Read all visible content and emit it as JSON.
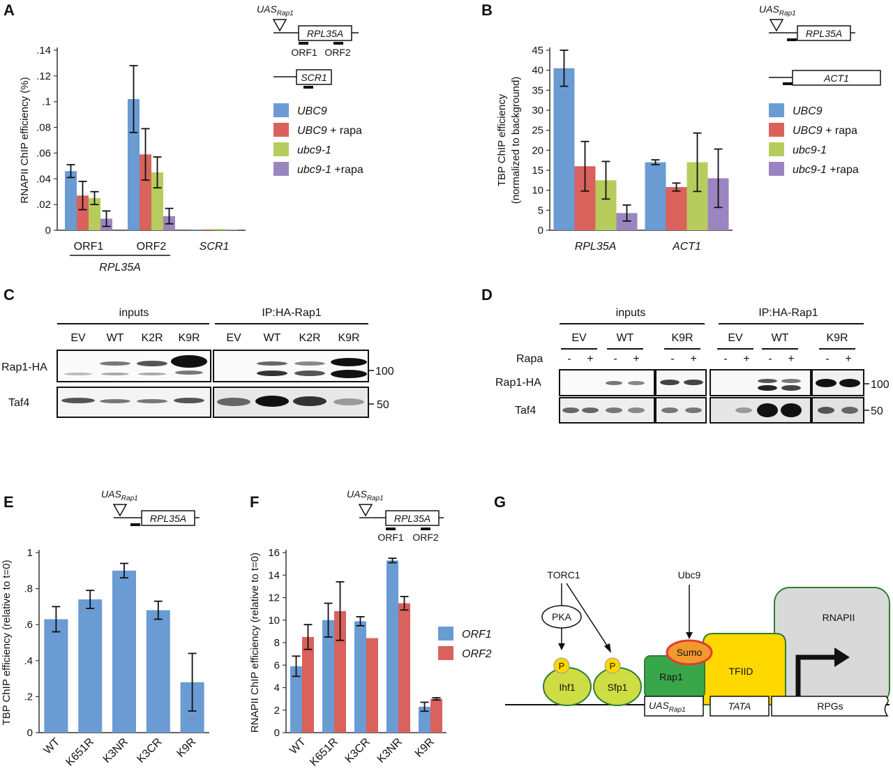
{
  "panel_labels": {
    "a": "A",
    "b": "B",
    "c": "C",
    "d": "D",
    "e": "E",
    "f": "F",
    "g": "G"
  },
  "colors": {
    "blue": "#6a9bd3",
    "red": "#d9625c",
    "green": "#b6cd5e",
    "purple": "#9b85c1",
    "f_blue": "#6a9bd3",
    "f_red": "#d9625c",
    "g_yellow": "#ffd800",
    "g_green": "#3aa64a",
    "g_gray": "#d9d9d9",
    "g_sumo": "#f29a2e",
    "g_pgreen": "#cfdd44"
  },
  "icon_names": [
    "triangle-uas-icon",
    "arrow-tss-icon"
  ],
  "schematics": {
    "uas": "UAS",
    "uas_sub": "Rap1",
    "rpl35a": "RPL35A",
    "scr1": "SCR1",
    "act1": "ACT1",
    "orf1": "ORF1",
    "orf2": "ORF2"
  },
  "legend_a": [
    {
      "label": "UBC9",
      "suffix": "",
      "color": "#6a9bd3"
    },
    {
      "label": "UBC9",
      "suffix": " + rapa",
      "color": "#d9625c"
    },
    {
      "label": "ubc9-1",
      "suffix": "",
      "color": "#b6cd5e"
    },
    {
      "label": "ubc9-1",
      "suffix": " +rapa",
      "color": "#9b85c1"
    }
  ],
  "legend_f": [
    {
      "label": "ORF1",
      "color": "#6a9bd3"
    },
    {
      "label": "ORF2",
      "color": "#d9625c"
    }
  ],
  "blot_c": {
    "group1": "inputs",
    "group2": "IP:HA-Rap1",
    "lanes": [
      "EV",
      "WT",
      "K2R",
      "K9R",
      "EV",
      "WT",
      "K2R",
      "K9R"
    ],
    "rows": [
      "Rap1-HA",
      "Taf4"
    ],
    "markers": [
      "100",
      "50"
    ]
  },
  "blot_d": {
    "group1": "inputs",
    "group2": "IP:HA-Rap1",
    "lanes": [
      "EV",
      "WT",
      "K9R",
      "EV",
      "WT",
      "K9R"
    ],
    "rapa_label": "Rapa",
    "minus": "-",
    "plus": "+",
    "rows": [
      "Rap1-HA",
      "Taf4"
    ],
    "markers": [
      "100",
      "50"
    ]
  },
  "diagram_g": {
    "torc1": "TORC1",
    "pka": "PKA",
    "p": "P",
    "ihf1": "Ihf1",
    "sfp1": "Sfp1",
    "ubc9": "Ubc9",
    "sumo": "Sumo",
    "rap1": "Rap1",
    "tfiid": "TFIID",
    "rnapii": "RNAPII",
    "uas": "UAS",
    "uas_sub": "Rap1",
    "tata": "TATA",
    "rpgs": "RPGs"
  },
  "chart_data": [
    {
      "id": "A",
      "type": "bar",
      "ylabel": "RNAPII ChIP efficiency (%)",
      "ylim": [
        0,
        0.14
      ],
      "yticks": [
        0,
        0.02,
        0.04,
        0.06,
        0.08,
        0.1,
        0.12,
        0.14
      ],
      "ytick_labels": [
        "0",
        ".02",
        ".04",
        ".06",
        ".08",
        ".1",
        ".12",
        ".14"
      ],
      "categories": [
        "ORF1",
        "ORF2",
        "SCR1"
      ],
      "category_italic": [
        false,
        false,
        true
      ],
      "group_label": "RPL35A",
      "series": [
        {
          "name": "UBC9",
          "values": [
            0.046,
            0.102,
            0.0006
          ],
          "errors": [
            0.005,
            0.026,
            0
          ]
        },
        {
          "name": "UBC9 + rapa",
          "values": [
            0.027,
            0.059,
            0.0006
          ],
          "errors": [
            0.011,
            0.02,
            0
          ]
        },
        {
          "name": "ubc9-1",
          "values": [
            0.025,
            0.045,
            0.001
          ],
          "errors": [
            0.005,
            0.012,
            0
          ]
        },
        {
          "name": "ubc9-1 +rapa",
          "values": [
            0.009,
            0.011,
            0.0004
          ],
          "errors": [
            0.006,
            0.006,
            0
          ]
        }
      ]
    },
    {
      "id": "B",
      "type": "bar",
      "ylabel": [
        "TBP ChIP efficiency",
        "(normalized to background)"
      ],
      "ylim": [
        0,
        45
      ],
      "yticks": [
        0,
        5,
        10,
        15,
        20,
        25,
        30,
        35,
        40,
        45
      ],
      "ytick_labels": [
        "0",
        "5",
        "10",
        "15",
        "20",
        "25",
        "30",
        "35",
        "40",
        "45"
      ],
      "categories": [
        "RPL35A",
        "ACT1"
      ],
      "category_italic": [
        true,
        true
      ],
      "series": [
        {
          "name": "UBC9",
          "values": [
            40.5,
            17.0
          ],
          "errors": [
            4.5,
            0.6
          ]
        },
        {
          "name": "UBC9 + rapa",
          "values": [
            16.0,
            10.8
          ],
          "errors": [
            6.2,
            1.0
          ]
        },
        {
          "name": "ubc9-1",
          "values": [
            12.5,
            17.0
          ],
          "errors": [
            4.7,
            7.3
          ]
        },
        {
          "name": "ubc9-1 +rapa",
          "values": [
            4.3,
            13.0
          ],
          "errors": [
            2.0,
            7.3
          ]
        }
      ]
    },
    {
      "id": "E",
      "type": "bar",
      "ylabel": "TBP ChIP efficiency (relative to t=0)",
      "ylim": [
        0,
        1
      ],
      "yticks": [
        0,
        0.2,
        0.4,
        0.6,
        0.8,
        1
      ],
      "ytick_labels": [
        "0",
        ".2",
        ".4",
        ".6",
        ".8",
        "1"
      ],
      "categories": [
        "WT",
        "K651R",
        "K3NR",
        "K3CR",
        "K9R"
      ],
      "series": [
        {
          "name": "",
          "values": [
            0.63,
            0.74,
            0.9,
            0.68,
            0.28
          ],
          "errors": [
            0.07,
            0.05,
            0.04,
            0.05,
            0.16
          ]
        }
      ]
    },
    {
      "id": "F",
      "type": "bar",
      "ylabel": "RNAPII ChIP efficiency (relative to t=0)",
      "ylim": [
        0,
        16
      ],
      "yticks": [
        0,
        2,
        4,
        6,
        8,
        10,
        12,
        14,
        16
      ],
      "ytick_labels": [
        "0",
        "2",
        "4",
        "6",
        "8",
        "10",
        "12",
        "14",
        "16"
      ],
      "categories": [
        "WT",
        "K651R",
        "K3CR",
        "K3NR",
        "K9R"
      ],
      "series": [
        {
          "name": "ORF1",
          "values": [
            5.9,
            10.0,
            9.9,
            15.3,
            2.3
          ],
          "errors": [
            0.9,
            1.5,
            0.4,
            0.2,
            0.4
          ]
        },
        {
          "name": "ORF2",
          "values": [
            8.5,
            10.8,
            8.4,
            11.5,
            3.0
          ],
          "errors": [
            1.1,
            2.6,
            0,
            0.6,
            0.1
          ]
        }
      ]
    }
  ]
}
